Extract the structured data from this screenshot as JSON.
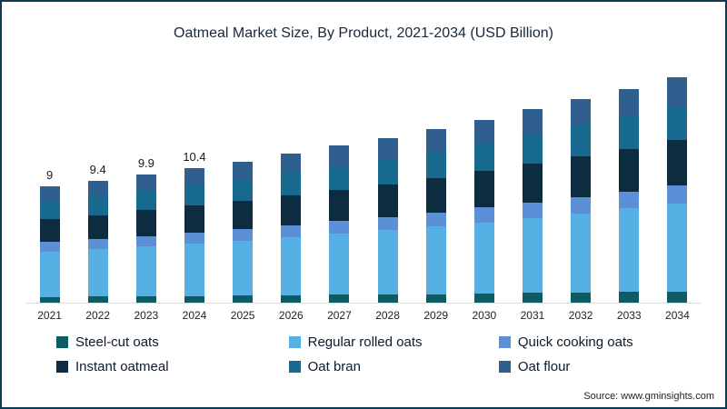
{
  "chart": {
    "title": "Oatmeal Market Size, By Product, 2021-2034 (USD Billion)",
    "source": "Source: www.gminsights.com"
  },
  "chart_data": {
    "type": "bar",
    "stacked": true,
    "title": "Oatmeal Market Size, By Product, 2021-2034 (USD Billion)",
    "xlabel": "",
    "ylabel": "USD Billion",
    "ylim": [
      0,
      18
    ],
    "grid": false,
    "legend_position": "bottom",
    "categories": [
      "2021",
      "2022",
      "2023",
      "2024",
      "2025",
      "2026",
      "2027",
      "2028",
      "2029",
      "2030",
      "2031",
      "2032",
      "2033",
      "2034"
    ],
    "totals": [
      9,
      9.4,
      9.9,
      10.4,
      10.9,
      11.5,
      12.1,
      12.7,
      13.4,
      14.1,
      14.9,
      15.7,
      16.5,
      17.4
    ],
    "total_labels": [
      "9",
      "9.4",
      "9.9",
      "10.4",
      "",
      "",
      "",
      "",
      "",
      "",
      "",
      "",
      "",
      ""
    ],
    "series": [
      {
        "name": "Steel-cut oats",
        "color": "#0e5c63",
        "values": [
          0.45,
          0.47,
          0.5,
          0.52,
          0.55,
          0.58,
          0.61,
          0.64,
          0.67,
          0.71,
          0.75,
          0.79,
          0.83,
          0.87
        ]
      },
      {
        "name": "Regular rolled oats",
        "color": "#56b0e3",
        "values": [
          3.51,
          3.67,
          3.86,
          4.06,
          4.25,
          4.49,
          4.72,
          4.95,
          5.23,
          5.5,
          5.81,
          6.12,
          6.44,
          6.79
        ]
      },
      {
        "name": "Quick cooking oats",
        "color": "#5b8fd6",
        "values": [
          0.72,
          0.75,
          0.79,
          0.83,
          0.87,
          0.92,
          0.97,
          1.02,
          1.07,
          1.13,
          1.19,
          1.26,
          1.32,
          1.39
        ]
      },
      {
        "name": "Instant oatmeal",
        "color": "#0d2c3f",
        "values": [
          1.8,
          1.88,
          1.98,
          2.08,
          2.18,
          2.3,
          2.42,
          2.54,
          2.68,
          2.82,
          2.98,
          3.14,
          3.3,
          3.48
        ]
      },
      {
        "name": "Oat bran",
        "color": "#17698f",
        "values": [
          1.35,
          1.41,
          1.49,
          1.56,
          1.64,
          1.73,
          1.82,
          1.91,
          2.01,
          2.12,
          2.24,
          2.36,
          2.48,
          2.61
        ]
      },
      {
        "name": "Oat flour",
        "color": "#2e5f8e",
        "values": [
          1.17,
          1.22,
          1.29,
          1.35,
          1.42,
          1.5,
          1.57,
          1.65,
          1.74,
          1.83,
          1.94,
          2.04,
          2.15,
          2.26
        ]
      }
    ]
  }
}
